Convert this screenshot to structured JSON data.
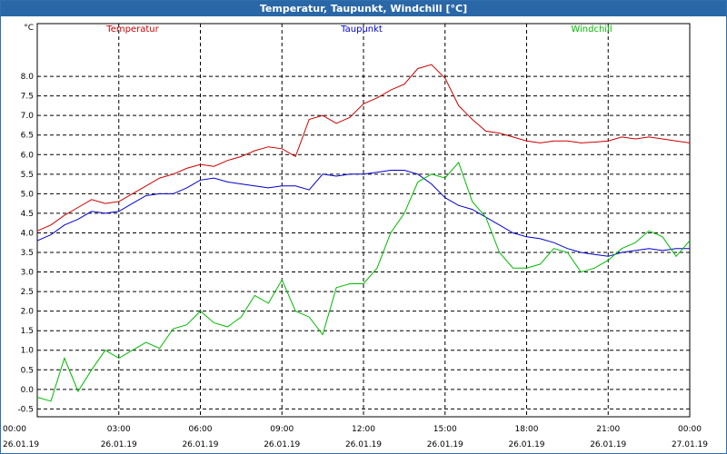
{
  "window": {
    "title": "Temperatur, Taupunkt, Windchill [°C]"
  },
  "chart_data": {
    "type": "line",
    "title": "Temperatur, Taupunkt, Windchill [°C]",
    "ylabel": "°C",
    "ylim": [
      -0.7,
      9.0
    ],
    "grid": true,
    "legend_placement": "top",
    "yticks": [
      "-0.5",
      "0.0",
      "0.5",
      "1.0",
      "1.5",
      "2.0",
      "2.5",
      "3.0",
      "3.5",
      "4.0",
      "4.5",
      "5.0",
      "5.5",
      "6.0",
      "6.5",
      "7.0",
      "7.5",
      "8.0"
    ],
    "xticks": [
      {
        "time": "00:00",
        "date": "26.01.19"
      },
      {
        "time": "03:00",
        "date": "26.01.19"
      },
      {
        "time": "06:00",
        "date": "26.01.19"
      },
      {
        "time": "09:00",
        "date": "26.01.19"
      },
      {
        "time": "12:00",
        "date": "26.01.19"
      },
      {
        "time": "15:00",
        "date": "26.01.19"
      },
      {
        "time": "18:00",
        "date": "26.01.19"
      },
      {
        "time": "21:00",
        "date": "26.01.19"
      },
      {
        "time": "00:00",
        "date": "27.01.19"
      }
    ],
    "x_unit": "hours after 26.01.19 00:00",
    "x_range": [
      0,
      24
    ],
    "series": [
      {
        "name": "Temperatur",
        "color": "#cc0000",
        "x": [
          0,
          0.5,
          1,
          1.5,
          2,
          2.5,
          3,
          3.5,
          4,
          4.5,
          5,
          5.5,
          6,
          6.5,
          7,
          7.5,
          8,
          8.5,
          9,
          9.5,
          10,
          10.5,
          11,
          11.5,
          12,
          12.5,
          13,
          13.5,
          14,
          14.5,
          15,
          15.5,
          16,
          16.5,
          17,
          17.5,
          18,
          18.5,
          19,
          19.5,
          20,
          20.5,
          21,
          21.5,
          22,
          22.5,
          23,
          23.5,
          24
        ],
        "values": [
          4.05,
          4.2,
          4.45,
          4.65,
          4.85,
          4.75,
          4.8,
          5.0,
          5.2,
          5.4,
          5.5,
          5.65,
          5.75,
          5.7,
          5.85,
          5.95,
          6.1,
          6.2,
          6.15,
          5.95,
          6.9,
          7.0,
          6.8,
          6.95,
          7.3,
          7.45,
          7.65,
          7.8,
          8.2,
          8.3,
          7.95,
          7.25,
          6.9,
          6.6,
          6.55,
          6.45,
          6.35,
          6.3,
          6.35,
          6.35,
          6.3,
          6.32,
          6.35,
          6.45,
          6.4,
          6.45,
          6.4,
          6.35,
          6.3
        ]
      },
      {
        "name": "Taupunkt",
        "color": "#0000cc",
        "x": [
          0,
          0.5,
          1,
          1.5,
          2,
          2.5,
          3,
          3.5,
          4,
          4.5,
          5,
          5.5,
          6,
          6.5,
          7,
          7.5,
          8,
          8.5,
          9,
          9.5,
          10,
          10.5,
          11,
          11.5,
          12,
          12.5,
          13,
          13.5,
          14,
          14.5,
          15,
          15.5,
          16,
          16.5,
          17,
          17.5,
          18,
          18.5,
          19,
          19.5,
          20,
          20.5,
          21,
          21.5,
          22,
          22.5,
          23,
          23.5,
          24
        ],
        "values": [
          3.8,
          3.95,
          4.2,
          4.35,
          4.55,
          4.5,
          4.55,
          4.75,
          4.95,
          5.0,
          5.0,
          5.15,
          5.35,
          5.4,
          5.3,
          5.25,
          5.2,
          5.15,
          5.2,
          5.2,
          5.1,
          5.5,
          5.45,
          5.5,
          5.5,
          5.55,
          5.6,
          5.6,
          5.5,
          5.25,
          4.9,
          4.7,
          4.6,
          4.4,
          4.2,
          4.0,
          3.9,
          3.85,
          3.75,
          3.6,
          3.5,
          3.45,
          3.4,
          3.5,
          3.55,
          3.6,
          3.55,
          3.6,
          3.6
        ]
      },
      {
        "name": "Windchill",
        "color": "#00bb00",
        "x": [
          0,
          0.5,
          1,
          1.5,
          2,
          2.5,
          3,
          3.5,
          4,
          4.5,
          5,
          5.5,
          6,
          6.5,
          7,
          7.5,
          8,
          8.5,
          9,
          9.5,
          10,
          10.5,
          11,
          11.5,
          12,
          12.5,
          13,
          13.5,
          14,
          14.5,
          15,
          15.5,
          16,
          16.5,
          17,
          17.5,
          18,
          18.5,
          19,
          19.5,
          20,
          20.5,
          21,
          21.5,
          22,
          22.5,
          23,
          23.5,
          24
        ],
        "values": [
          -0.2,
          -0.3,
          0.8,
          -0.05,
          0.5,
          1.0,
          0.8,
          1.0,
          1.2,
          1.05,
          1.55,
          1.65,
          2.0,
          1.7,
          1.6,
          1.85,
          2.4,
          2.2,
          2.8,
          2.0,
          1.85,
          1.4,
          2.6,
          2.7,
          2.7,
          3.1,
          4.0,
          4.5,
          5.3,
          5.5,
          5.4,
          5.8,
          4.8,
          4.4,
          3.5,
          3.1,
          3.1,
          3.2,
          3.6,
          3.5,
          3.0,
          3.1,
          3.3,
          3.6,
          3.75,
          4.05,
          3.9,
          3.4,
          3.8
        ]
      }
    ]
  }
}
